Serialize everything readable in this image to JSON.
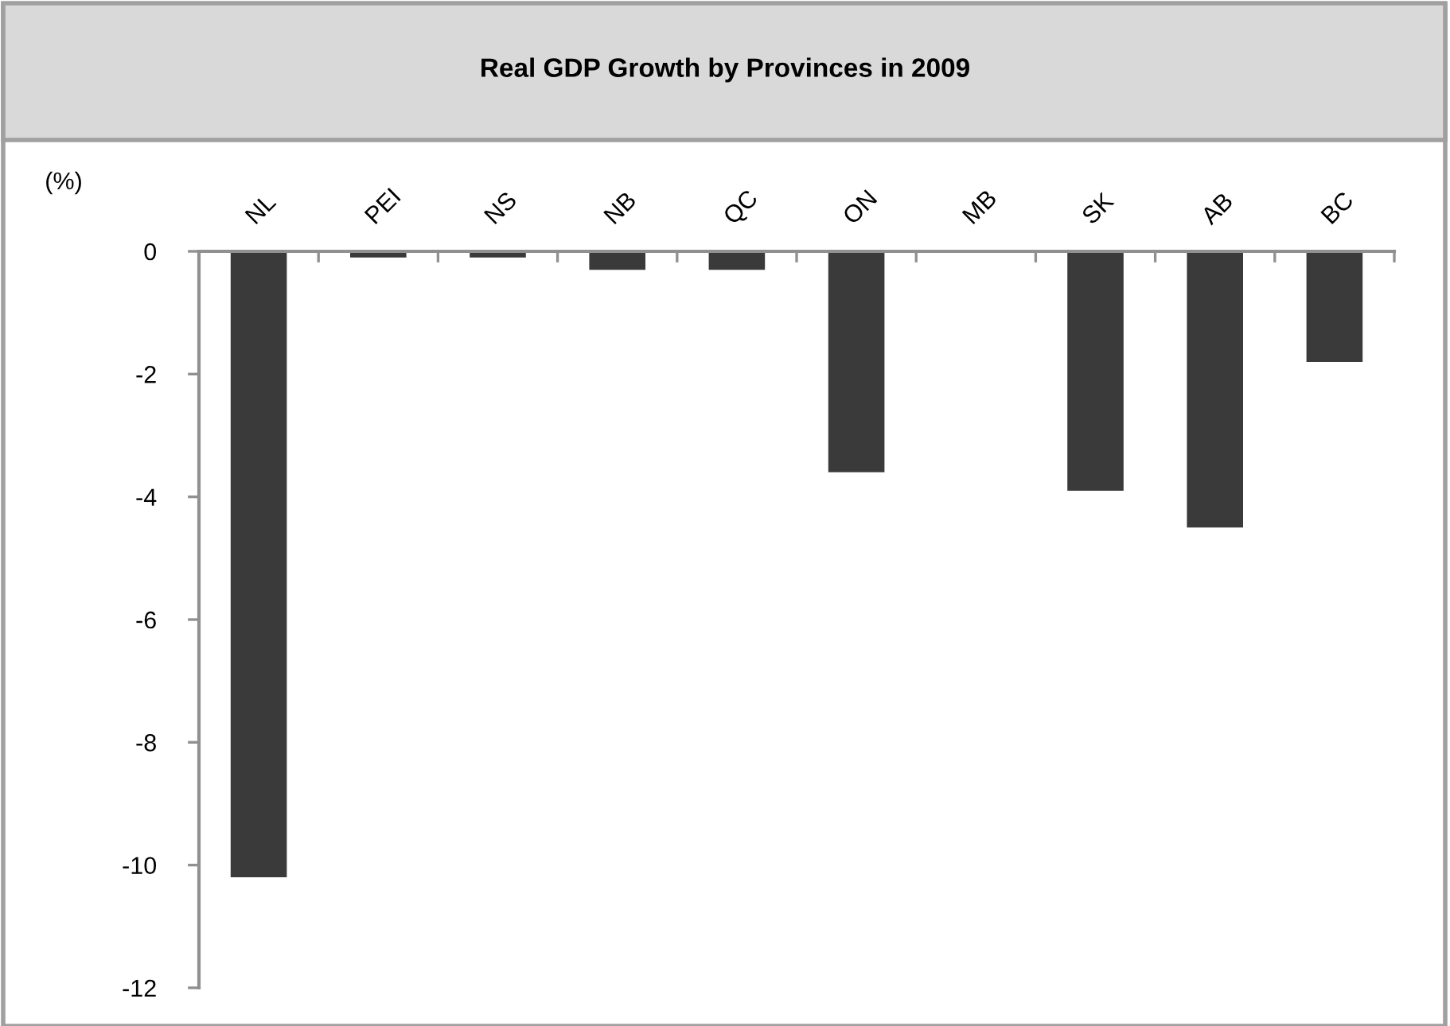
{
  "chart_data": {
    "type": "bar",
    "title": "Real GDP Growth by Provinces in 2009",
    "ylabel": "(%)",
    "categories": [
      "NL",
      "PEI",
      "NS",
      "NB",
      "QC",
      "ON",
      "MB",
      "SK",
      "AB",
      "BC"
    ],
    "values": [
      -10.2,
      -0.1,
      -0.1,
      -0.3,
      -0.3,
      -3.6,
      0,
      -3.9,
      -4.5,
      -1.8
    ],
    "color": "#3a3a3a",
    "ylim": [
      -12,
      0
    ],
    "yticks": [
      -12,
      -10,
      -8,
      -6,
      -4,
      -2,
      0
    ],
    "grid": false,
    "legend": false
  }
}
